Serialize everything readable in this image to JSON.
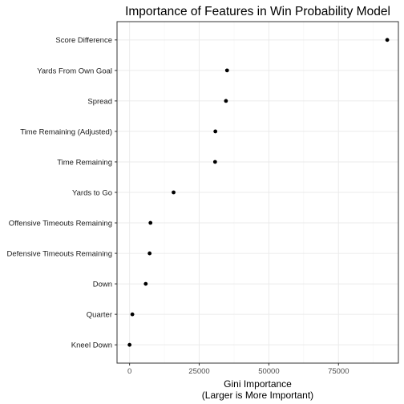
{
  "chart_data": {
    "type": "scatter",
    "title": "Importance of Features in Win Probability Model",
    "xlabel_lines": [
      "Gini Importance",
      "(Larger is More Important)"
    ],
    "ylabel": "",
    "categories": [
      "Score Difference",
      "Yards From Own Goal",
      "Spread",
      "Time Remaining (Adjusted)",
      "Time Remaining",
      "Yards to Go",
      "Offensive Timeouts Remaining",
      "Defensive Timeouts Remaining",
      "Down",
      "Quarter",
      "Kneel Down"
    ],
    "values": [
      92500,
      35000,
      34600,
      30800,
      30700,
      15800,
      7500,
      7200,
      5800,
      1000,
      0
    ],
    "xlim": [
      -4500,
      96500
    ],
    "xticks": [
      0,
      25000,
      50000,
      75000
    ],
    "xtick_labels": [
      "0",
      "25000",
      "50000",
      "75000"
    ],
    "grid": true,
    "legend": "none",
    "point_color": "#000000",
    "panel_border_color": "#333333",
    "grid_color": "#ebebeb"
  }
}
